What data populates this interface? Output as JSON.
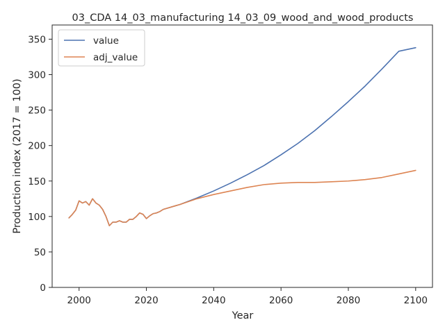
{
  "chart_data": {
    "type": "line",
    "title": "03_CDA 14_03_manufacturing 14_03_09_wood_and_wood_products",
    "xlabel": "Year",
    "ylabel": "Production index (2017 = 100)",
    "xlim": [
      1992,
      2105
    ],
    "ylim": [
      0,
      370
    ],
    "xticks": [
      2000,
      2020,
      2040,
      2060,
      2080,
      2100
    ],
    "yticks": [
      0,
      50,
      100,
      150,
      200,
      250,
      300,
      350
    ],
    "grid": false,
    "legend_position": "upper-left",
    "series": [
      {
        "name": "value",
        "color": "#4c72b0",
        "x": [
          1997,
          1998,
          1999,
          2000,
          2001,
          2002,
          2003,
          2004,
          2005,
          2006,
          2007,
          2008,
          2009,
          2010,
          2011,
          2012,
          2013,
          2014,
          2015,
          2016,
          2017,
          2018,
          2019,
          2020,
          2021,
          2022,
          2023,
          2024,
          2025,
          2030,
          2035,
          2040,
          2045,
          2050,
          2055,
          2060,
          2065,
          2070,
          2075,
          2080,
          2085,
          2090,
          2095,
          2100
        ],
        "y": [
          98,
          103,
          109,
          122,
          119,
          121,
          116,
          125,
          119,
          116,
          110,
          100,
          87,
          92,
          92,
          94,
          92,
          92,
          96,
          96,
          100,
          105,
          103,
          97,
          101,
          104,
          105,
          107,
          110,
          117,
          126,
          136,
          147,
          159,
          172,
          187,
          203,
          221,
          241,
          262,
          284,
          308,
          333,
          338
        ]
      },
      {
        "name": "adj_value",
        "color": "#dd8452",
        "x": [
          1997,
          1998,
          1999,
          2000,
          2001,
          2002,
          2003,
          2004,
          2005,
          2006,
          2007,
          2008,
          2009,
          2010,
          2011,
          2012,
          2013,
          2014,
          2015,
          2016,
          2017,
          2018,
          2019,
          2020,
          2021,
          2022,
          2023,
          2024,
          2025,
          2030,
          2035,
          2040,
          2045,
          2050,
          2055,
          2060,
          2065,
          2070,
          2075,
          2080,
          2085,
          2090,
          2095,
          2100
        ],
        "y": [
          98,
          103,
          109,
          122,
          119,
          121,
          116,
          125,
          119,
          116,
          110,
          100,
          87,
          92,
          92,
          94,
          92,
          92,
          96,
          96,
          100,
          105,
          103,
          97,
          101,
          104,
          105,
          107,
          110,
          117,
          125,
          131,
          136,
          141,
          145,
          147,
          148,
          148,
          149,
          150,
          152,
          155,
          160,
          165
        ]
      }
    ]
  }
}
